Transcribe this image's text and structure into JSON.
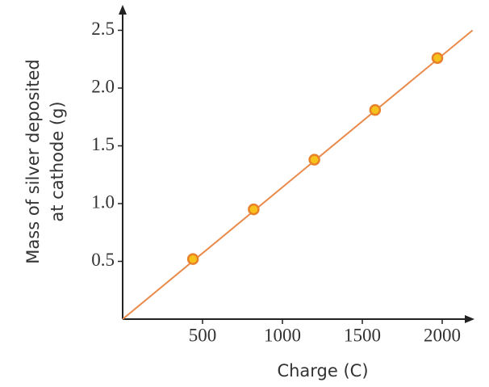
{
  "chart_data": {
    "type": "scatter",
    "x_label": "Charge (C)",
    "y_label": [
      "Mass of silver deposited",
      "at cathode (g)"
    ],
    "x": [
      440,
      820,
      1200,
      1580,
      1970
    ],
    "values": [
      0.52,
      0.95,
      1.38,
      1.81,
      2.26
    ],
    "color": "#f7c21c",
    "edge_color": "#e8822a",
    "fit_line": {
      "x": [
        0,
        2190
      ],
      "y": [
        0,
        2.5
      ],
      "color": "#ea8a4a"
    },
    "xlim": [
      0,
      2200
    ],
    "ylim": [
      0,
      2.6
    ],
    "xticks": [
      500,
      1000,
      1500,
      2000
    ],
    "yticks": [
      0.5,
      {
        "value": 1.0,
        "label": "1.0"
      },
      1.5,
      {
        "value": 2.0,
        "label": "2.0"
      },
      2.5
    ]
  }
}
